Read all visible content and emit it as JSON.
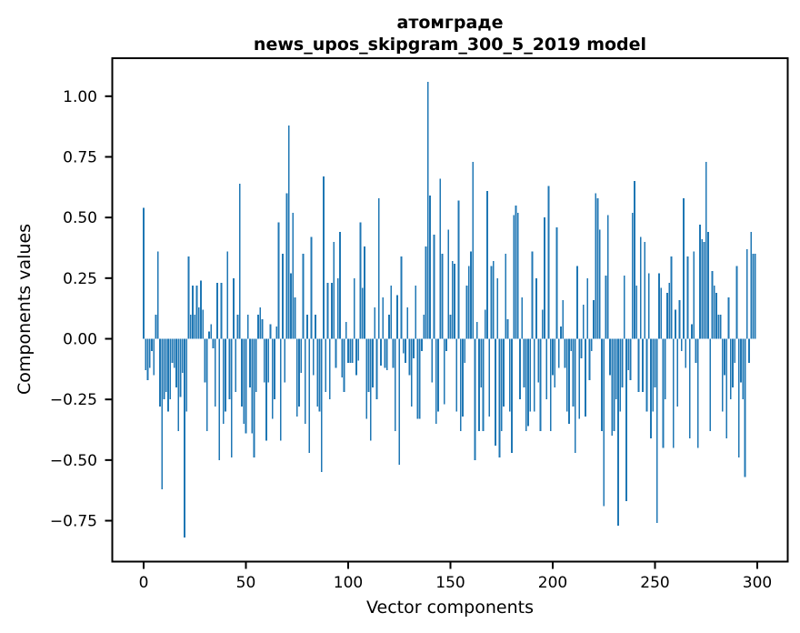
{
  "figure": {
    "background": "#ffffff"
  },
  "chart_data": {
    "type": "bar",
    "title": "атомграде\nnews_upos_skipgram_300_5_2019 model",
    "title_lines": [
      "атомграде",
      "news_upos_skipgram_300_5_2019 model"
    ],
    "xlabel": "Vector components",
    "ylabel": "Components values",
    "bar_color": "#1f77b4",
    "n_components": 300,
    "grid": false,
    "legend": null,
    "x_ticks": [
      0,
      50,
      100,
      150,
      200,
      250,
      300
    ],
    "y_ticks": [
      1.0,
      0.75,
      0.5,
      0.25,
      0.0,
      -0.25,
      -0.5,
      -0.75
    ],
    "y_tick_labels": [
      "1.00",
      "0.75",
      "0.50",
      "0.25",
      "0.00",
      "−0.25",
      "−0.50",
      "−0.75"
    ],
    "xlim": [
      -14.95,
      313.95
    ],
    "ylim": [
      -0.917,
      1.157
    ],
    "values": [
      0.54,
      -0.13,
      -0.17,
      -0.12,
      -0.05,
      -0.15,
      0.1,
      0.36,
      -0.28,
      -0.62,
      -0.25,
      -0.22,
      -0.3,
      -0.25,
      -0.1,
      -0.12,
      -0.2,
      -0.38,
      -0.24,
      -0.14,
      -0.82,
      -0.3,
      0.34,
      0.1,
      0.22,
      0.1,
      0.22,
      0.13,
      0.24,
      0.12,
      -0.18,
      -0.38,
      0.03,
      0.06,
      -0.04,
      -0.28,
      0.23,
      -0.5,
      0.23,
      -0.35,
      -0.3,
      0.36,
      -0.25,
      -0.49,
      0.25,
      -0.22,
      0.1,
      0.64,
      -0.28,
      -0.35,
      -0.39,
      0.1,
      -0.2,
      -0.39,
      -0.49,
      -0.22,
      0.1,
      0.13,
      0.08,
      -0.18,
      -0.42,
      -0.18,
      0.06,
      -0.33,
      -0.25,
      0.05,
      0.48,
      -0.42,
      0.35,
      -0.18,
      0.6,
      0.88,
      0.27,
      0.52,
      0.17,
      -0.32,
      -0.28,
      -0.14,
      0.35,
      -0.35,
      0.1,
      -0.47,
      0.42,
      -0.15,
      0.1,
      -0.28,
      -0.3,
      -0.55,
      0.67,
      -0.22,
      0.23,
      -0.25,
      0.23,
      0.4,
      -0.12,
      0.25,
      0.44,
      -0.16,
      -0.22,
      0.07,
      -0.1,
      -0.1,
      -0.1,
      0.25,
      -0.15,
      -0.09,
      0.48,
      0.21,
      0.38,
      -0.33,
      -0.22,
      -0.42,
      -0.2,
      0.13,
      -0.25,
      0.58,
      -0.11,
      0.17,
      -0.12,
      -0.13,
      0.1,
      0.22,
      -0.12,
      -0.38,
      0.18,
      -0.52,
      0.34,
      -0.06,
      -0.1,
      0.13,
      -0.15,
      -0.28,
      -0.08,
      0.22,
      -0.33,
      -0.33,
      -0.05,
      0.1,
      0.38,
      1.06,
      0.59,
      -0.18,
      0.43,
      -0.35,
      -0.3,
      0.66,
      0.35,
      -0.27,
      -0.05,
      0.45,
      0.1,
      0.32,
      0.31,
      -0.3,
      0.57,
      -0.38,
      -0.32,
      -0.1,
      0.22,
      0.3,
      0.36,
      0.73,
      -0.5,
      0.07,
      -0.38,
      -0.2,
      -0.38,
      0.12,
      0.61,
      -0.32,
      0.3,
      0.32,
      -0.44,
      0.25,
      -0.49,
      -0.38,
      -0.28,
      0.35,
      0.08,
      -0.3,
      -0.47,
      0.51,
      0.55,
      0.52,
      -0.25,
      0.17,
      -0.2,
      -0.38,
      -0.36,
      -0.3,
      0.36,
      -0.3,
      0.25,
      -0.18,
      -0.38,
      0.12,
      0.5,
      -0.25,
      0.63,
      -0.38,
      -0.15,
      -0.2,
      0.46,
      -0.12,
      0.05,
      0.16,
      -0.12,
      -0.3,
      -0.35,
      -0.05,
      -0.28,
      -0.47,
      0.3,
      -0.33,
      -0.08,
      0.14,
      -0.32,
      0.25,
      -0.17,
      -0.05,
      0.16,
      0.6,
      0.58,
      0.45,
      -0.38,
      -0.69,
      0.26,
      0.51,
      -0.15,
      -0.4,
      -0.38,
      -0.25,
      -0.77,
      -0.3,
      -0.2,
      0.26,
      -0.67,
      -0.13,
      -0.17,
      0.52,
      0.65,
      0.22,
      -0.22,
      0.42,
      -0.22,
      0.4,
      -0.3,
      0.27,
      -0.41,
      -0.3,
      -0.2,
      -0.76,
      0.27,
      0.21,
      -0.45,
      -0.25,
      0.19,
      0.23,
      0.34,
      -0.45,
      0.12,
      -0.28,
      0.16,
      -0.05,
      0.58,
      -0.12,
      0.34,
      -0.41,
      0.06,
      0.36,
      -0.1,
      -0.45,
      0.47,
      0.41,
      0.4,
      0.73,
      0.44,
      -0.38,
      0.28,
      0.22,
      0.19,
      0.1,
      0.1,
      -0.3,
      -0.15,
      -0.41,
      0.17,
      -0.25,
      -0.2,
      -0.1,
      0.3,
      -0.49,
      -0.18,
      -0.25,
      -0.57,
      0.37,
      -0.1,
      0.44,
      0.35,
      0.35
    ]
  }
}
